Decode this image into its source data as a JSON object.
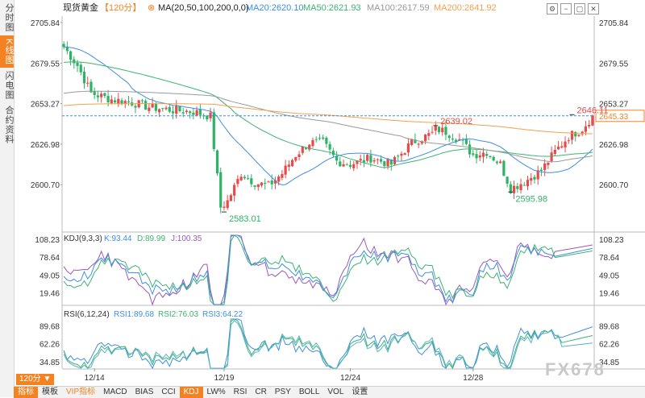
{
  "sidebar": {
    "tabs": [
      {
        "label": "分时图",
        "active": false
      },
      {
        "label": "K线图",
        "active": true
      },
      {
        "label": "闪电图",
        "active": false
      },
      {
        "label": "合约资料",
        "active": false
      }
    ]
  },
  "header": {
    "symbol": "现货黄金",
    "period": "【120分】",
    "ma_settings": "MA(20,50,100,200,0,0)",
    "ma_values": [
      {
        "label": "MA20:2620.10",
        "color": "#3d8fe0"
      },
      {
        "label": "MA50:2621.93",
        "color": "#3cb371"
      },
      {
        "label": "MA100:2617.59",
        "color": "#999999"
      },
      {
        "label": "MA200:2641.92",
        "color": "#f5a04a"
      }
    ]
  },
  "toolbar_icons": [
    "gear-icon",
    "minus-icon",
    "restore-icon",
    "close-icon"
  ],
  "colors": {
    "up": "#e84a4a",
    "down": "#2db365",
    "ma20": "#3d8fe0",
    "ma50": "#3cb371",
    "ma100": "#999999",
    "ma200": "#f5a04a",
    "accent": "#f58220"
  },
  "chart_data": [
    {
      "type": "candlestick",
      "title": "现货黄金",
      "y_ticks": [
        "2705.84",
        "2679.55",
        "2653.27",
        "2626.98",
        "2600.70"
      ],
      "ylim": [
        2570,
        2710
      ],
      "annotations": [
        {
          "label": "2646.11",
          "x": 149,
          "y": 2646.11,
          "color": "#e84a4a"
        },
        {
          "label": "2639.02",
          "x": 109,
          "y": 2639.02,
          "color": "#e84a4a"
        },
        {
          "label": "2583.01",
          "x": 47,
          "y": 2583.01,
          "color": "#2db365"
        },
        {
          "label": "2595.98",
          "x": 131,
          "y": 2595.98,
          "color": "#2db365"
        }
      ],
      "current_price": "2645.33",
      "dates": [
        {
          "label": "12/14",
          "x": 9
        },
        {
          "label": "12/19",
          "x": 47
        },
        {
          "label": "12/24",
          "x": 84
        },
        {
          "label": "12/28",
          "x": 120
        }
      ],
      "candles": [],
      "ma_series": {
        "names": [
          "MA20",
          "MA50",
          "MA100",
          "MA200"
        ]
      }
    },
    {
      "type": "line",
      "title": "KDJ(9,3,3)",
      "legend": [
        {
          "name": "K:93.44",
          "color": "#3d8fe0"
        },
        {
          "name": "D:89.99",
          "color": "#3cb371"
        },
        {
          "name": "J:100.35",
          "color": "#9b59b6"
        }
      ],
      "y_ticks": [
        "108.23",
        "78.64",
        "49.05",
        "19.46"
      ],
      "ylim": [
        0,
        115
      ]
    },
    {
      "type": "line",
      "title": "RSI(6,12,24)",
      "legend": [
        {
          "name": "RSI1:89.68",
          "color": "#3d8fe0"
        },
        {
          "name": "RSI2:76.03",
          "color": "#3cb371"
        },
        {
          "name": "RSI3:64.22",
          "color": "#3d8fe0"
        }
      ],
      "y_ticks": [
        "89.68",
        "62.26",
        "34.85"
      ],
      "ylim": [
        25,
        100
      ]
    }
  ],
  "bottombar": {
    "period_label": "120分 ▼",
    "items": [
      {
        "label": "指标",
        "style": "first"
      },
      {
        "label": "模板",
        "style": ""
      },
      {
        "label": "VIP指标",
        "style": "vip"
      },
      {
        "label": "MACD",
        "style": ""
      },
      {
        "label": "BIAS",
        "style": ""
      },
      {
        "label": "CCI",
        "style": ""
      },
      {
        "label": "KDJ",
        "style": "active"
      },
      {
        "label": "LW%",
        "style": ""
      },
      {
        "label": "RSI",
        "style": ""
      },
      {
        "label": "CR",
        "style": ""
      },
      {
        "label": "PSY",
        "style": ""
      },
      {
        "label": "BOLL",
        "style": ""
      },
      {
        "label": "VOL",
        "style": ""
      },
      {
        "label": "设置",
        "style": ""
      }
    ]
  },
  "watermark": "FX678"
}
